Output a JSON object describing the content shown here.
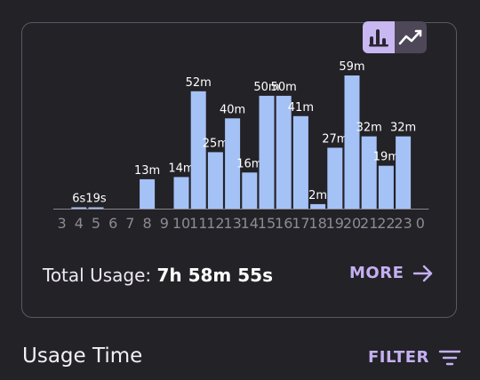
{
  "chart_toggle": {
    "bar_icon": "bar-chart-icon",
    "line_icon": "line-chart-icon",
    "active": "bar"
  },
  "chart_data": {
    "type": "bar",
    "categories": [
      "3",
      "4",
      "5",
      "6",
      "7",
      "8",
      "9",
      "10",
      "11",
      "12",
      "13",
      "14",
      "15",
      "16",
      "17",
      "18",
      "19",
      "20",
      "21",
      "22",
      "23",
      "0"
    ],
    "values": [
      0,
      0.1,
      0.32,
      0,
      0,
      13,
      0,
      14,
      52,
      25,
      40,
      16,
      50,
      50,
      41,
      2,
      27,
      59,
      32,
      19,
      32,
      0
    ],
    "data_labels": [
      "",
      "6s",
      "19s",
      "",
      "",
      "13m",
      "",
      "14m",
      "52m",
      "25m",
      "40m",
      "16m",
      "50m",
      "50m",
      "41m",
      "2m",
      "27m",
      "59m",
      "32m",
      "19m",
      "32m",
      ""
    ],
    "unit": "minutes",
    "bar_color": "#a5c2f6",
    "grid": false
  },
  "summary": {
    "label": "Total Usage:",
    "value": "7h 58m 55s"
  },
  "more_link": {
    "label": "MORE",
    "icon": "arrow-right-icon"
  },
  "section": {
    "title": "Usage Time"
  },
  "filter_button": {
    "label": "FILTER",
    "icon": "filter-icon"
  },
  "colors": {
    "background": "#232227",
    "accent": "#c4b0f0",
    "toggle_active": "#c9b7f2"
  }
}
